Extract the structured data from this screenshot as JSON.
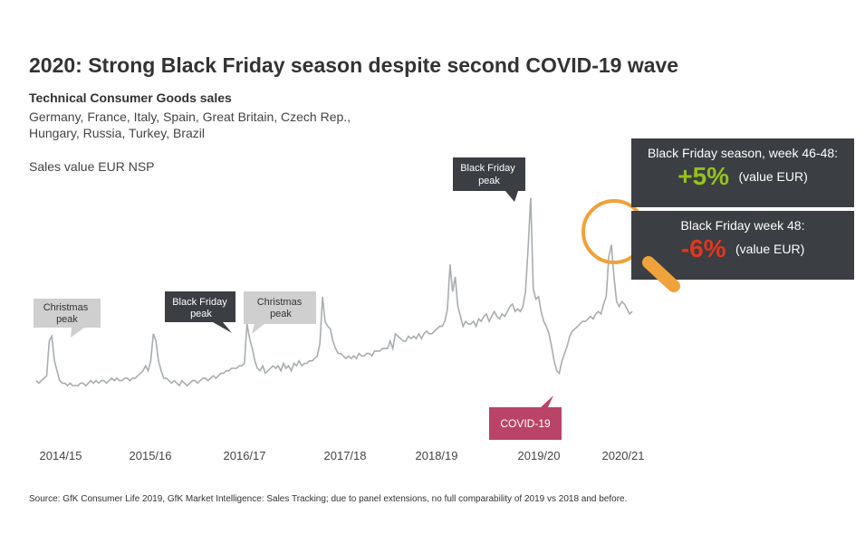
{
  "title": "2020: Strong Black Friday season despite second COVID-19 wave",
  "subtitle": "Technical Consumer Goods sales",
  "countries": "Germany, France, Italy, Spain, Great Britain, Czech Rep., Hungary, Russia, Turkey, Brazil",
  "unit": "Sales value EUR NSP",
  "source": "Source: GfK Consumer Life 2019, GfK Market Intelligence: Sales Tracking; due to panel extensions, no full comparability of 2019 vs 2018 and before.",
  "colors": {
    "line": "#a8adb0",
    "dark_callout": "#3b3e42",
    "light_callout": "#cfcfcf",
    "covid_callout": "#b94467",
    "positive": "#95c11f",
    "negative": "#e2361f",
    "magnifier": "#f0a23c"
  },
  "callouts": {
    "christmas_1": [
      "Christmas",
      "peak"
    ],
    "black_friday_1": [
      "Black Friday",
      "peak"
    ],
    "christmas_2": [
      "Christmas",
      "peak"
    ],
    "black_friday_2": [
      "Black Friday",
      "peak"
    ],
    "covid": "COVID-19"
  },
  "panel_season": {
    "label": "Black Friday season, week 46-48:",
    "value": "+5%",
    "note": "(value EUR)"
  },
  "panel_week": {
    "label": "Black Friday week 48:",
    "value": "-6%",
    "note": "(value EUR)"
  },
  "chart_data": {
    "type": "line",
    "title": "2020: Strong Black Friday season despite second COVID-19 wave",
    "xlabel": "",
    "ylabel": "Sales value EUR NSP",
    "x_tick_labels": [
      "2014/15",
      "2015/16",
      "2016/17",
      "2017/18",
      "2018/19",
      "2019/20",
      "2020/21"
    ],
    "grid": false,
    "legend": "none",
    "series": [
      {
        "values": [
          6,
          5,
          6,
          7,
          8,
          22,
          24,
          14,
          10,
          6,
          5,
          5,
          4,
          5,
          4,
          4,
          4,
          5,
          5,
          4,
          5,
          6,
          5,
          6,
          5,
          6,
          6,
          5,
          6,
          7,
          6,
          7,
          6,
          6,
          7,
          7,
          6,
          7,
          7,
          8,
          9,
          10,
          12,
          10,
          14,
          25,
          22,
          14,
          10,
          7,
          7,
          6,
          5,
          6,
          5,
          4,
          6,
          5,
          4,
          5,
          6,
          6,
          5,
          6,
          7,
          7,
          6,
          7,
          8,
          7,
          8,
          9,
          9,
          10,
          10,
          11,
          11,
          11,
          12,
          12,
          13,
          29,
          23,
          19,
          14,
          11,
          10,
          12,
          9,
          10,
          11,
          12,
          11,
          12,
          10,
          13,
          11,
          12,
          10,
          13,
          12,
          14,
          12,
          13,
          13,
          14,
          14,
          15,
          16,
          21,
          40,
          30,
          28,
          27,
          22,
          19,
          17,
          17,
          16,
          15,
          16,
          15,
          16,
          15,
          17,
          16,
          16,
          17,
          17,
          16,
          18,
          18,
          18,
          19,
          19,
          19,
          22,
          19,
          25,
          24,
          23,
          22,
          22,
          24,
          23,
          24,
          23,
          25,
          23,
          25,
          26,
          25,
          25,
          26,
          27,
          28,
          28,
          30,
          35,
          53,
          42,
          48,
          36,
          32,
          28,
          30,
          29,
          29,
          30,
          28,
          31,
          30,
          32,
          33,
          30,
          32,
          34,
          32,
          31,
          33,
          32,
          34,
          36,
          37,
          34,
          35,
          34,
          36,
          42,
          60,
          80,
          43,
          39,
          40,
          34,
          30,
          28,
          25,
          20,
          14,
          10,
          9,
          14,
          17,
          20,
          24,
          26,
          27,
          28,
          29,
          30,
          30,
          31,
          32,
          31,
          33,
          34,
          33,
          37,
          40,
          56,
          61,
          48,
          38,
          36,
          38,
          37,
          35,
          33,
          34
        ]
      }
    ],
    "annotations": [
      "Christmas peak",
      "Black Friday peak",
      "Christmas peak",
      "Black Friday peak",
      "COVID-19"
    ],
    "y_axis_shown": false
  }
}
